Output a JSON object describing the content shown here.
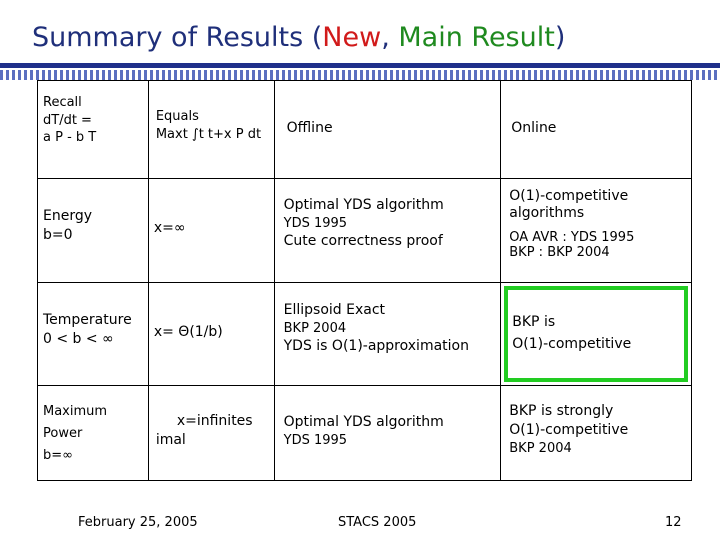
{
  "title": {
    "prefix": "Summary of Results (",
    "new": "New",
    "sep": ", ",
    "main": "Main Result",
    "suffix": ")"
  },
  "table": {
    "header": {
      "c1_lines": [
        "Recall",
        "dT/dt =",
        "a P - b T"
      ],
      "c2_lines": [
        "Equals",
        "Maxt ∫t t+x P dt"
      ],
      "c3": "Offline",
      "c4": "Online"
    },
    "rows": [
      {
        "name_lines": [
          "Energy",
          "b=0"
        ],
        "x": "x=∞",
        "offline": [
          "Optimal YDS algorithm",
          "YDS 1995",
          "Cute correctness proof"
        ],
        "online": [
          "O(1)-competitive algorithms",
          "OA AVR : YDS 1995",
          "BKP : BKP 2004"
        ]
      },
      {
        "name_lines": [
          "Temperature",
          "0 < b < ∞"
        ],
        "x": "x= Θ(1/b)",
        "offline": [
          "Ellipsoid Exact",
          "BKP 2004",
          "YDS is O(1)-approximation"
        ],
        "online": [
          "BKP is",
          "O(1)-competitive"
        ]
      },
      {
        "name_lines": [
          "Maximum",
          "Power",
          "b=∞"
        ],
        "x_lines": [
          "x=infinites",
          "imal"
        ],
        "offline": [
          "Optimal YDS algorithm",
          "YDS 1995"
        ],
        "online": [
          "BKP is strongly",
          "O(1)-competitive",
          "BKP 2004"
        ]
      }
    ]
  },
  "footer": {
    "date": "February 25, 2005",
    "venue": "STACS 2005",
    "page": "12"
  }
}
